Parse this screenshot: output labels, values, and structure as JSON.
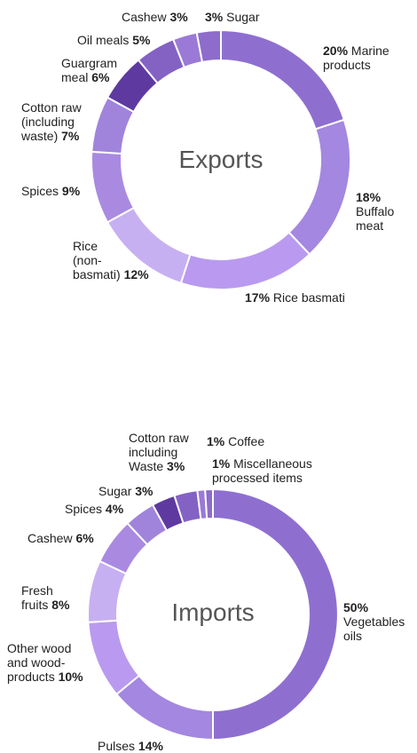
{
  "chart_data": [
    {
      "type": "pie",
      "title": "Exports",
      "slices": [
        {
          "label": "Marine products",
          "value": 20,
          "display": "20%",
          "color": "#8e6fd0"
        },
        {
          "label": "Buffalo meat",
          "value": 18,
          "display": "18%",
          "color": "#a487e0"
        },
        {
          "label": "Rice basmati",
          "value": 17,
          "display": "17%",
          "color": "#b99af0"
        },
        {
          "label": "Rice (non-basmati)",
          "value": 12,
          "display": "12%",
          "color": "#c7b0f1"
        },
        {
          "label": "Spices",
          "value": 9,
          "display": "9%",
          "color": "#a98ae0"
        },
        {
          "label": "Cotton raw (including waste)",
          "value": 7,
          "display": "7%",
          "color": "#a084dc"
        },
        {
          "label": "Guargram meal",
          "value": 6,
          "display": "6%",
          "color": "#5e3aa0"
        },
        {
          "label": "Oil meals",
          "value": 5,
          "display": "5%",
          "color": "#8462c4"
        },
        {
          "label": "Cashew",
          "value": 3,
          "display": "3%",
          "color": "#9a7ad6"
        },
        {
          "label": "Sugar",
          "value": 3,
          "display": "3%",
          "color": "#8d6ccc"
        }
      ]
    },
    {
      "type": "pie",
      "title": "Imports",
      "slices": [
        {
          "label": "Vegetables oils",
          "value": 50,
          "display": "50%",
          "color": "#8e6fd0"
        },
        {
          "label": "Pulses",
          "value": 14,
          "display": "14%",
          "color": "#a487e0"
        },
        {
          "label": "Other wood and wood-products",
          "value": 10,
          "display": "10%",
          "color": "#b99af0"
        },
        {
          "label": "Fresh fruits",
          "value": 8,
          "display": "8%",
          "color": "#c7b0f1"
        },
        {
          "label": "Cashew",
          "value": 6,
          "display": "6%",
          "color": "#a98ae0"
        },
        {
          "label": "Spices",
          "value": 4,
          "display": "4%",
          "color": "#a084dc"
        },
        {
          "label": "Sugar",
          "value": 3,
          "display": "3%",
          "color": "#5e3aa0"
        },
        {
          "label": "Cotton raw including Waste",
          "value": 3,
          "display": "3%",
          "color": "#8462c4"
        },
        {
          "label": "Coffee",
          "value": 1,
          "display": "1%",
          "color": "#9a7ad6"
        },
        {
          "label": "Miscellaneous processed items",
          "value": 1,
          "display": "1%",
          "color": "#8d6ccc"
        }
      ]
    }
  ],
  "labels": {
    "exports": {
      "marine_pct": "20%",
      "marine_text": "Marine",
      "marine_text2": "products",
      "buffalo_pct": "18%",
      "buffalo_text": "Buffalo",
      "buffalo_text2": "meat",
      "basmati_pct": "17%",
      "basmati_text": "Rice basmati",
      "nonbasmati_text1": "Rice",
      "nonbasmati_text2": "(non-",
      "nonbasmati_text3": "basmati)",
      "nonbasmati_pct": "12%",
      "spices_text": "Spices",
      "spices_pct": "9%",
      "cotton_text1": "Cotton raw",
      "cotton_text2": "(including",
      "cotton_text3": "waste)",
      "cotton_pct": "7%",
      "guar_text1": "Guargram",
      "guar_text2": "meal",
      "guar_pct": "6%",
      "oil_text": "Oil meals",
      "oil_pct": "5%",
      "cashew_text": "Cashew",
      "cashew_pct": "3%",
      "sugar_pct": "3%",
      "sugar_text": "Sugar"
    },
    "imports": {
      "veg_pct": "50%",
      "veg_text1": "Vegetables",
      "veg_text2": "oils",
      "pulses_text": "Pulses",
      "pulses_pct": "14%",
      "wood_text1": "Other wood",
      "wood_text2": "and wood-",
      "wood_text3": "products",
      "wood_pct": "10%",
      "fruits_text1": "Fresh",
      "fruits_text2": "fruits",
      "fruits_pct": "8%",
      "cashew_text": "Cashew",
      "cashew_pct": "6%",
      "spices_text": "Spices",
      "spices_pct": "4%",
      "sugar_text": "Sugar",
      "sugar_pct": "3%",
      "cotton_text1": "Cotton raw",
      "cotton_text2": "including",
      "cotton_text3": "Waste",
      "cotton_pct": "3%",
      "coffee_pct": "1%",
      "coffee_text": "Coffee",
      "misc_pct": "1%",
      "misc_text1": "Miscellaneous",
      "misc_text2": "processed items"
    }
  }
}
